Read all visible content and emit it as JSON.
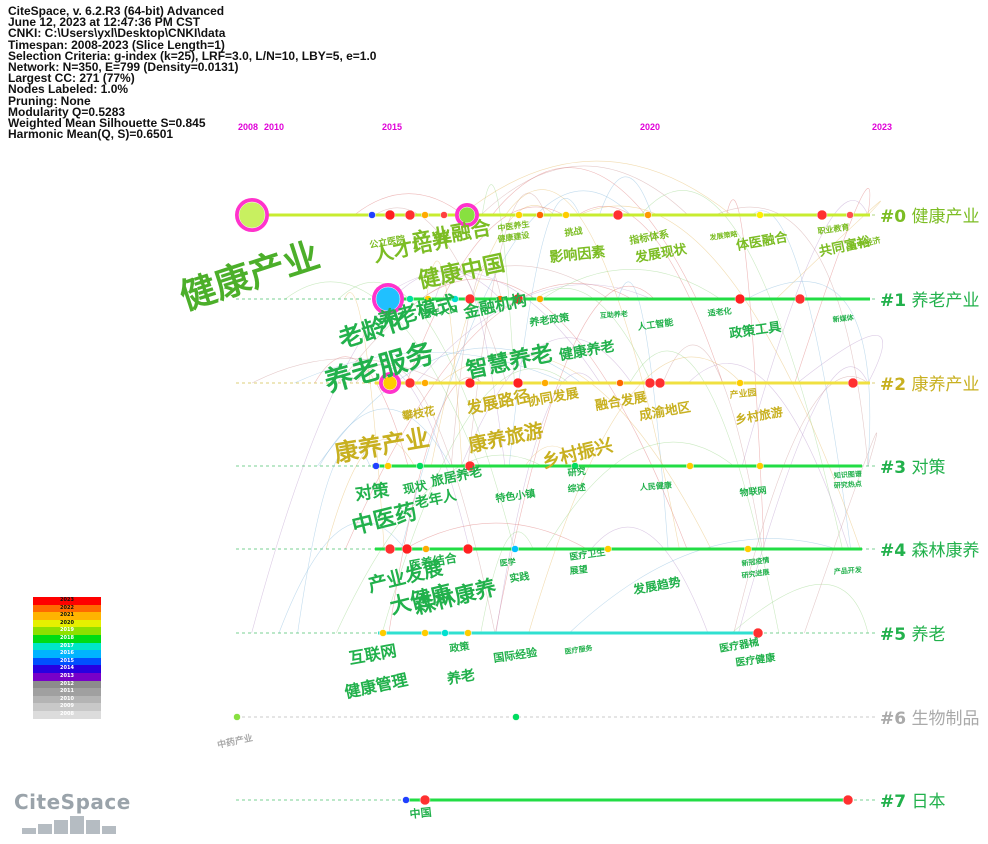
{
  "info": [
    "CiteSpace, v. 6.2.R3 (64-bit) Advanced",
    "June 12, 2023 at 12:47:36 PM CST",
    "CNKI: C:\\Users\\yxl\\Desktop\\CNKI\\data",
    "Timespan: 2008-2023 (Slice Length=1)",
    "Selection Criteria: g-index (k=25), LRF=3.0, L/N=10, LBY=5, e=1.0",
    "Network: N=350, E=799 (Density=0.0131)",
    "Largest CC: 271 (77%)",
    "Nodes Labeled: 1.0%",
    "Pruning: None",
    "Modularity Q=0.5283",
    "Weighted Mean Silhouette S=0.845",
    "Harmonic Mean(Q, S)=0.6501"
  ],
  "years": [
    "2008",
    "2010",
    "2015",
    "2020",
    "2023"
  ],
  "clusters": [
    {
      "id": "#0",
      "name": "健康产业",
      "color": "#7cbd24"
    },
    {
      "id": "#1",
      "name": "养老产业",
      "color": "#22b14c"
    },
    {
      "id": "#2",
      "name": "康养产业",
      "color": "#c8b020"
    },
    {
      "id": "#3",
      "name": "对策",
      "color": "#22b14c"
    },
    {
      "id": "#4",
      "name": "森林康养",
      "color": "#22b14c"
    },
    {
      "id": "#5",
      "name": "养老",
      "color": "#22b14c"
    },
    {
      "id": "#6",
      "name": "生物制品",
      "color": "#aaaaaa"
    },
    {
      "id": "#7",
      "name": "日本",
      "color": "#22b14c"
    }
  ],
  "keywords": [
    {
      "text": "健康产业",
      "size": "xl",
      "color": "#4caf2a"
    },
    {
      "text": "人才培养",
      "size": "l",
      "color": "#7cbd24"
    },
    {
      "text": "产业融合",
      "size": "l",
      "color": "#7cbd24"
    },
    {
      "text": "健康中国",
      "size": "l",
      "color": "#7cbd24"
    },
    {
      "text": "公立医院",
      "size": "s",
      "color": "#7cbd24"
    },
    {
      "text": "中医养生",
      "size": "s",
      "color": "#7cbd24"
    },
    {
      "text": "健康建设",
      "size": "s",
      "color": "#7cbd24"
    },
    {
      "text": "挑战",
      "size": "s",
      "color": "#7cbd24"
    },
    {
      "text": "影响因素",
      "size": "m",
      "color": "#7cbd24"
    },
    {
      "text": "指标体系",
      "size": "s",
      "color": "#7cbd24"
    },
    {
      "text": "发展现状",
      "size": "m",
      "color": "#7cbd24"
    },
    {
      "text": "发展策略",
      "size": "s",
      "color": "#7cbd24"
    },
    {
      "text": "体医融合",
      "size": "m",
      "color": "#7cbd24"
    },
    {
      "text": "职业教育",
      "size": "s",
      "color": "#7cbd24"
    },
    {
      "text": "共同富裕",
      "size": "m",
      "color": "#7cbd24"
    },
    {
      "text": "数字经济",
      "size": "s",
      "color": "#7cbd24"
    },
    {
      "text": "老龄化",
      "size": "l",
      "color": "#22b14c"
    },
    {
      "text": "养老模式",
      "size": "l",
      "color": "#22b14c"
    },
    {
      "text": "老年人口",
      "size": "s",
      "color": "#22b14c"
    },
    {
      "text": "金融机构",
      "size": "m",
      "color": "#22b14c"
    },
    {
      "text": "养老政策",
      "size": "s",
      "color": "#22b14c"
    },
    {
      "text": "互助养老",
      "size": "s",
      "color": "#22b14c"
    },
    {
      "text": "人工智能",
      "size": "s",
      "color": "#22b14c"
    },
    {
      "text": "适老化",
      "size": "s",
      "color": "#22b14c"
    },
    {
      "text": "政策工具",
      "size": "m",
      "color": "#22b14c"
    },
    {
      "text": "新媒体",
      "size": "s",
      "color": "#22b14c"
    },
    {
      "text": "养老服务",
      "size": "xl",
      "color": "#22b14c"
    },
    {
      "text": "智慧养老",
      "size": "l",
      "color": "#22b14c"
    },
    {
      "text": "健康养老",
      "size": "m",
      "color": "#22b14c"
    },
    {
      "text": "攀枝花",
      "size": "s",
      "color": "#c8b020"
    },
    {
      "text": "发展路径",
      "size": "m",
      "color": "#c8b020"
    },
    {
      "text": "协同发展",
      "size": "m",
      "color": "#c8b020"
    },
    {
      "text": "融合发展",
      "size": "m",
      "color": "#c8b020"
    },
    {
      "text": "产业园",
      "size": "s",
      "color": "#c8b020"
    },
    {
      "text": "成渝地区",
      "size": "m",
      "color": "#c8b020"
    },
    {
      "text": "乡村旅游",
      "size": "m",
      "color": "#c8b020"
    },
    {
      "text": "康养产业",
      "size": "l",
      "color": "#c8b020"
    },
    {
      "text": "康养旅游",
      "size": "l",
      "color": "#c8b020"
    },
    {
      "text": "乡村振兴",
      "size": "l",
      "color": "#c8b020"
    },
    {
      "text": "对策",
      "size": "m",
      "color": "#22b14c"
    },
    {
      "text": "现状",
      "size": "m",
      "color": "#22b14c"
    },
    {
      "text": "旅居养老",
      "size": "m",
      "color": "#22b14c"
    },
    {
      "text": "研究",
      "size": "s",
      "color": "#22b14c"
    },
    {
      "text": "综述",
      "size": "s",
      "color": "#22b14c"
    },
    {
      "text": "人民健康",
      "size": "s",
      "color": "#22b14c"
    },
    {
      "text": "物联网",
      "size": "s",
      "color": "#22b14c"
    },
    {
      "text": "知识图谱",
      "size": "s",
      "color": "#22b14c"
    },
    {
      "text": "研究热点",
      "size": "s",
      "color": "#22b14c"
    },
    {
      "text": "中医药",
      "size": "l",
      "color": "#22b14c"
    },
    {
      "text": "老年人",
      "size": "m",
      "color": "#22b14c"
    },
    {
      "text": "特色小镇",
      "size": "s",
      "color": "#22b14c"
    },
    {
      "text": "产业发展",
      "size": "l",
      "color": "#22b14c"
    },
    {
      "text": "医养结合",
      "size": "m",
      "color": "#22b14c"
    },
    {
      "text": "医学",
      "size": "s",
      "color": "#22b14c"
    },
    {
      "text": "医疗卫生",
      "size": "s",
      "color": "#22b14c"
    },
    {
      "text": "展望",
      "size": "s",
      "color": "#22b14c"
    },
    {
      "text": "实践",
      "size": "s",
      "color": "#22b14c"
    },
    {
      "text": "发展趋势",
      "size": "m",
      "color": "#22b14c"
    },
    {
      "text": "新冠疫情",
      "size": "s",
      "color": "#22b14c"
    },
    {
      "text": "研究进展",
      "size": "s",
      "color": "#22b14c"
    },
    {
      "text": "产品开发",
      "size": "s",
      "color": "#22b14c"
    },
    {
      "text": "大健康",
      "size": "l",
      "color": "#22b14c"
    },
    {
      "text": "森林康养",
      "size": "l",
      "color": "#22b14c"
    },
    {
      "text": "互联网",
      "size": "l",
      "color": "#22b14c"
    },
    {
      "text": "政策",
      "size": "s",
      "color": "#22b14c"
    },
    {
      "text": "国际经验",
      "size": "s",
      "color": "#22b14c"
    },
    {
      "text": "医疗服务",
      "size": "s",
      "color": "#22b14c"
    },
    {
      "text": "医疗器械",
      "size": "s",
      "color": "#22b14c"
    },
    {
      "text": "医疗健康",
      "size": "s",
      "color": "#22b14c"
    },
    {
      "text": "健康管理",
      "size": "m",
      "color": "#22b14c"
    },
    {
      "text": "养老",
      "size": "m",
      "color": "#22b14c"
    },
    {
      "text": "中药产业",
      "size": "s",
      "color": "#aaaaaa"
    },
    {
      "text": "中国",
      "size": "s",
      "color": "#22b14c"
    }
  ],
  "legend": [
    "2023",
    "2022",
    "2021",
    "2020",
    "2019",
    "2018",
    "2017",
    "2016",
    "2015",
    "2014",
    "2013",
    "2012",
    "2011",
    "2010",
    "2009",
    "2008"
  ],
  "legend_colors": [
    "#ff0000",
    "#ff6a00",
    "#ffb400",
    "#e6f000",
    "#8ee000",
    "#00dc14",
    "#00e6c8",
    "#00b4ff",
    "#0050ff",
    "#2800e0",
    "#7800c8",
    "#8c8c8c",
    "#a0a0a0",
    "#b4b4b4",
    "#c8c8c8",
    "#dcdcdc"
  ],
  "logo": {
    "text": "CiteSpace"
  }
}
